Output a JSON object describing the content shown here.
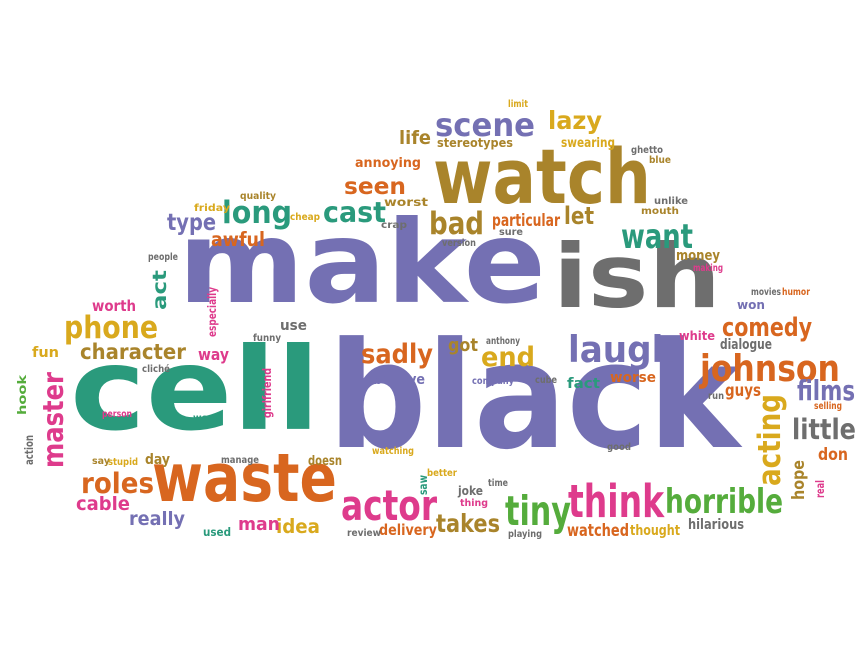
{
  "palette": {
    "teal": "#2a9a7c",
    "purple": "#7470b3",
    "orange": "#d8661f",
    "gold": "#a9842b",
    "pink": "#de3b8c",
    "green": "#55ac3c",
    "yellow": "#d9a91d",
    "gray": "#6e6e6e",
    "red": "#c84a2c"
  },
  "words": [
    {
      "text": "make",
      "color": "purple"
    },
    {
      "text": "cell",
      "color": "teal"
    },
    {
      "text": "black",
      "color": "purple"
    },
    {
      "text": "ish",
      "color": "gray"
    },
    {
      "text": "watch",
      "color": "gold"
    },
    {
      "text": "waste",
      "color": "orange"
    },
    {
      "text": "actor",
      "color": "pink"
    },
    {
      "text": "think",
      "color": "pink"
    },
    {
      "text": "tiny",
      "color": "green"
    },
    {
      "text": "horrible",
      "color": "green"
    },
    {
      "text": "johnson",
      "color": "orange"
    },
    {
      "text": "laugh",
      "color": "purple"
    },
    {
      "text": "scene",
      "color": "purple"
    },
    {
      "text": "long",
      "color": "teal"
    },
    {
      "text": "cast",
      "color": "teal"
    },
    {
      "text": "bad",
      "color": "gold"
    },
    {
      "text": "want",
      "color": "teal"
    },
    {
      "text": "phone",
      "color": "yellow"
    },
    {
      "text": "character",
      "color": "gold"
    },
    {
      "text": "master",
      "color": "pink"
    },
    {
      "text": "roles",
      "color": "orange"
    },
    {
      "text": "acting",
      "color": "yellow"
    },
    {
      "text": "little",
      "color": "gray"
    },
    {
      "text": "films",
      "color": "purple"
    },
    {
      "text": "comedy",
      "color": "orange"
    },
    {
      "text": "sadly",
      "color": "orange"
    },
    {
      "text": "end",
      "color": "yellow"
    },
    {
      "text": "seen",
      "color": "orange"
    },
    {
      "text": "lazy",
      "color": "yellow"
    },
    {
      "text": "takes",
      "color": "gold"
    },
    {
      "text": "type",
      "color": "purple"
    },
    {
      "text": "awful",
      "color": "orange"
    },
    {
      "text": "cable",
      "color": "pink"
    },
    {
      "text": "really",
      "color": "purple"
    },
    {
      "text": "idea",
      "color": "yellow"
    },
    {
      "text": "man",
      "color": "pink"
    },
    {
      "text": "delivery",
      "color": "orange"
    },
    {
      "text": "watched",
      "color": "orange"
    },
    {
      "text": "thought",
      "color": "yellow"
    },
    {
      "text": "hilarious",
      "color": "gray"
    },
    {
      "text": "life",
      "color": "gold"
    },
    {
      "text": "particular",
      "color": "orange"
    },
    {
      "text": "let",
      "color": "gold"
    },
    {
      "text": "got",
      "color": "gold"
    },
    {
      "text": "believe",
      "color": "purple"
    },
    {
      "text": "fact",
      "color": "teal"
    },
    {
      "text": "worse",
      "color": "orange"
    },
    {
      "text": "guys",
      "color": "orange"
    },
    {
      "text": "hope",
      "color": "gold"
    },
    {
      "text": "don",
      "color": "orange"
    },
    {
      "text": "way",
      "color": "pink"
    },
    {
      "text": "use",
      "color": "gray"
    },
    {
      "text": "worth",
      "color": "pink"
    },
    {
      "text": "act",
      "color": "teal"
    },
    {
      "text": "fun",
      "color": "yellow"
    },
    {
      "text": "hook",
      "color": "green"
    },
    {
      "text": "day",
      "color": "gold"
    },
    {
      "text": "joke",
      "color": "gray"
    },
    {
      "text": "swearing",
      "color": "yellow"
    },
    {
      "text": "stereotypes",
      "color": "gold"
    },
    {
      "text": "annoying",
      "color": "orange"
    },
    {
      "text": "worst",
      "color": "gold"
    },
    {
      "text": "money",
      "color": "gold"
    },
    {
      "text": "won",
      "color": "purple"
    },
    {
      "text": "white",
      "color": "pink"
    },
    {
      "text": "dialogue",
      "color": "gray"
    },
    {
      "text": "mouth",
      "color": "gold"
    },
    {
      "text": "unlike",
      "color": "gray"
    },
    {
      "text": "ghetto",
      "color": "gray"
    },
    {
      "text": "blue",
      "color": "gold"
    },
    {
      "text": "limit",
      "color": "yellow"
    },
    {
      "text": "quality",
      "color": "gold"
    },
    {
      "text": "friday",
      "color": "yellow"
    },
    {
      "text": "cheap",
      "color": "yellow"
    },
    {
      "text": "crap",
      "color": "gray"
    },
    {
      "text": "version",
      "color": "gray"
    },
    {
      "text": "sure",
      "color": "gray"
    },
    {
      "text": "people",
      "color": "gray"
    },
    {
      "text": "especially",
      "color": "pink"
    },
    {
      "text": "funny",
      "color": "gray"
    },
    {
      "text": "girlfriend",
      "color": "pink"
    },
    {
      "text": "cliché",
      "color": "gray"
    },
    {
      "text": "person",
      "color": "pink"
    },
    {
      "text": "word",
      "color": "teal"
    },
    {
      "text": "action",
      "color": "gray"
    },
    {
      "text": "say",
      "color": "gold"
    },
    {
      "text": "stupid",
      "color": "yellow"
    },
    {
      "text": "manage",
      "color": "gray"
    },
    {
      "text": "doesn",
      "color": "gold"
    },
    {
      "text": "used",
      "color": "teal"
    },
    {
      "text": "review",
      "color": "gray"
    },
    {
      "text": "playing",
      "color": "gray"
    },
    {
      "text": "watching",
      "color": "yellow"
    },
    {
      "text": "saw",
      "color": "teal"
    },
    {
      "text": "better",
      "color": "yellow"
    },
    {
      "text": "thing",
      "color": "pink"
    },
    {
      "text": "anthony",
      "color": "gray"
    },
    {
      "text": "company",
      "color": "purple"
    },
    {
      "text": "cube",
      "color": "gray"
    },
    {
      "text": "time",
      "color": "gray"
    },
    {
      "text": "good",
      "color": "gray"
    },
    {
      "text": "run",
      "color": "gray"
    },
    {
      "text": "selling",
      "color": "orange"
    },
    {
      "text": "real",
      "color": "pink"
    },
    {
      "text": "movies",
      "color": "gray"
    },
    {
      "text": "humor",
      "color": "orange"
    },
    {
      "text": "making",
      "color": "pink"
    }
  ]
}
